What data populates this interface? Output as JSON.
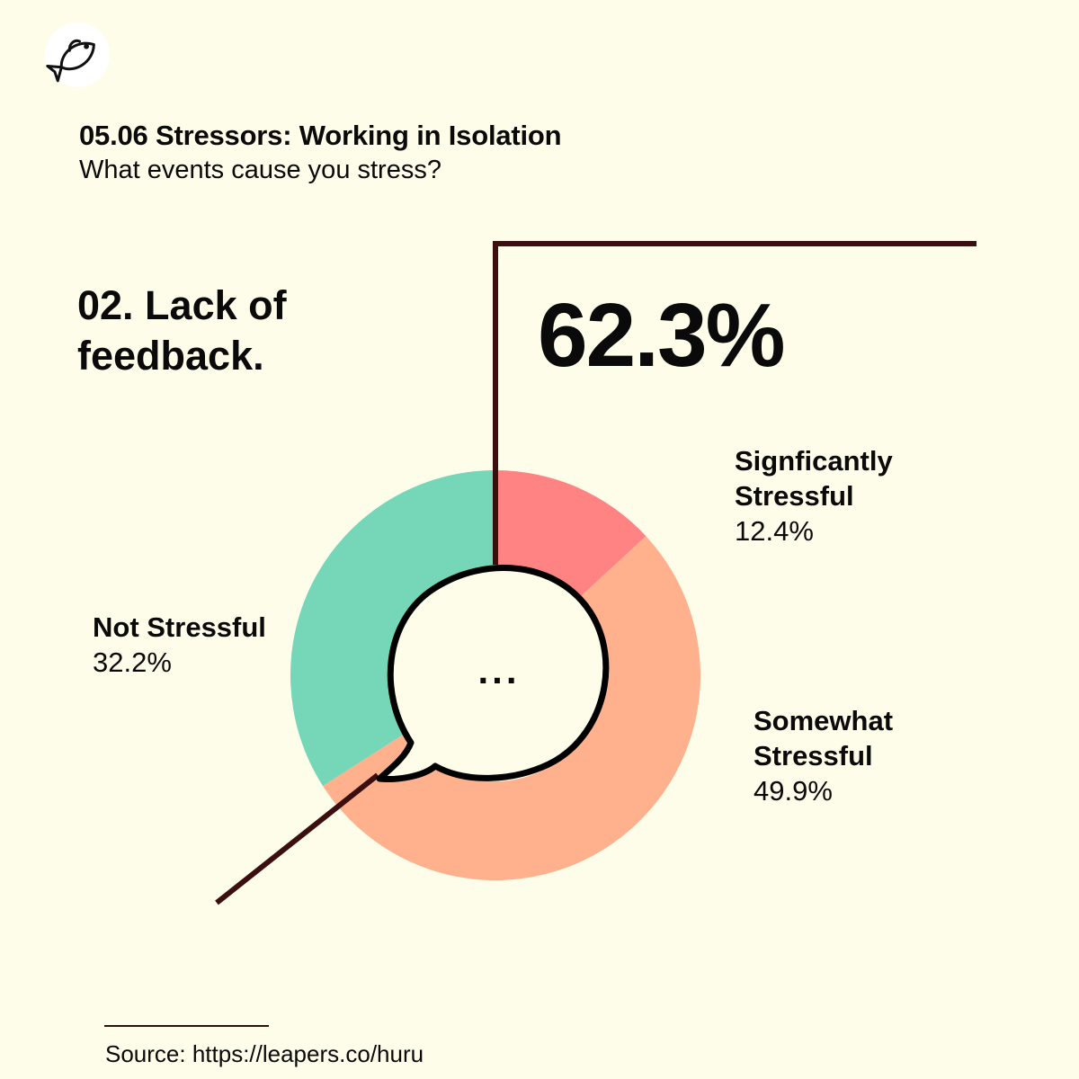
{
  "header": {
    "title": "05.06 Stressors: Working in Isolation",
    "subtitle": "What events cause you stress?"
  },
  "question": "02. Lack of feedback.",
  "highlight_value": "62.3%",
  "center_text": "...",
  "source": "Source: https://leapers.co/huru",
  "logo": {
    "icon": "fish-icon"
  },
  "colors": {
    "background": "#fefde9",
    "significantly": "#ff8383",
    "somewhat": "#ffb08c",
    "not": "#76d7b8",
    "line": "#3b0f0f"
  },
  "chart_data": {
    "type": "pie",
    "style": "donut",
    "segments": [
      {
        "name": "Signficantly Stressful",
        "value": 12.4,
        "label": "12.4%",
        "color": "#ff8383"
      },
      {
        "name": "Somewhat Stressful",
        "value": 49.9,
        "label": "49.9%",
        "color": "#ffb08c"
      },
      {
        "name": "Not Stressful",
        "value": 32.2,
        "label": "32.2%",
        "color": "#76d7b8"
      }
    ]
  }
}
